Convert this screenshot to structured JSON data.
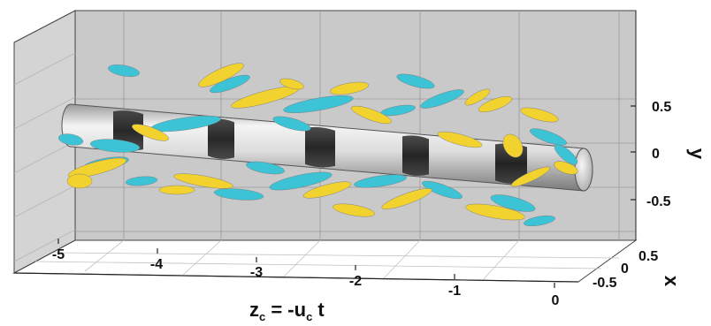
{
  "chart_data": {
    "type": "3d-isosurface",
    "z_axis": {
      "title_main": "z",
      "title_sub": "c",
      "title_eq": " = -u",
      "title_sub2": "c",
      "title_tail": " t",
      "ticks": [
        "-5",
        "-4",
        "-3",
        "-2",
        "-1",
        "0"
      ],
      "range": [
        -5.3,
        0.2
      ]
    },
    "y_axis": {
      "title": "y",
      "ticks": [
        "0.5",
        "0",
        "-0.5"
      ],
      "range": [
        -0.8,
        0.8
      ]
    },
    "x_axis": {
      "title": "x",
      "ticks": [
        "0.5",
        "0",
        "-0.5"
      ],
      "range": [
        -0.8,
        0.8
      ]
    },
    "grid": true,
    "colors": {
      "positive_isosurface": "#f2d22e",
      "negative_isosurface": "#3cc3d6",
      "back_wall": "#c9c9c9",
      "cylinder_light": "#efefef",
      "cylinder_dark": "#1d1d1d"
    },
    "isosurface_series": [
      {
        "color": "positive_isosurface"
      },
      {
        "color": "negative_isosurface"
      }
    ]
  }
}
